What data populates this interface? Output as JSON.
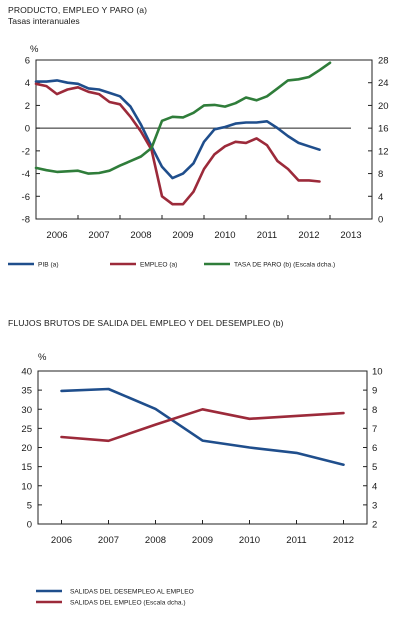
{
  "chart_data": [
    {
      "type": "line",
      "title": "PRODUCTO, EMPLEO Y PARO (a)",
      "subtitle": "Tasas interanuales",
      "y_unit": "%",
      "ylim_left": [
        -8,
        6
      ],
      "yticks_left": [
        "6",
        "4",
        "2",
        "0",
        "-2",
        "-4",
        "-6",
        "-8"
      ],
      "ylim_right": [
        0,
        28
      ],
      "yticks_right": [
        "28",
        "24",
        "20",
        "16",
        "12",
        "8",
        "4",
        "0"
      ],
      "x_range": [
        2005.5,
        2013.5
      ],
      "xticks": [
        "2006",
        "2007",
        "2008",
        "2009",
        "2010",
        "2011",
        "2012",
        "2013"
      ],
      "grid": false,
      "legend_position": "bottom",
      "series": [
        {
          "name": "PIB (a)",
          "axis": "left",
          "color": "#1f4e8c",
          "x": [
            2005.5,
            2005.75,
            2006.0,
            2006.25,
            2006.5,
            2006.75,
            2007.0,
            2007.25,
            2007.5,
            2007.75,
            2008.0,
            2008.25,
            2008.5,
            2008.75,
            2009.0,
            2009.25,
            2009.5,
            2009.75,
            2010.0,
            2010.25,
            2010.5,
            2010.75,
            2011.0,
            2011.25,
            2011.5,
            2011.75,
            2012.0,
            2012.25
          ],
          "values": [
            4.1,
            4.1,
            4.2,
            4.0,
            3.9,
            3.5,
            3.4,
            3.1,
            2.8,
            1.9,
            0.3,
            -1.6,
            -3.4,
            -4.4,
            -4.0,
            -3.1,
            -1.2,
            -0.1,
            0.1,
            0.4,
            0.5,
            0.5,
            0.6,
            0.0,
            -0.7,
            -1.3,
            -1.6,
            -1.9
          ]
        },
        {
          "name": "EMPLEO (a)",
          "axis": "left",
          "color": "#9c2a3a",
          "x": [
            2005.5,
            2005.75,
            2006.0,
            2006.25,
            2006.5,
            2006.75,
            2007.0,
            2007.25,
            2007.5,
            2007.75,
            2008.0,
            2008.25,
            2008.5,
            2008.75,
            2009.0,
            2009.25,
            2009.5,
            2009.75,
            2010.0,
            2010.25,
            2010.5,
            2010.75,
            2011.0,
            2011.25,
            2011.5,
            2011.75,
            2012.0,
            2012.25
          ],
          "values": [
            3.9,
            3.7,
            3.0,
            3.4,
            3.6,
            3.2,
            3.0,
            2.3,
            2.1,
            1.0,
            -0.3,
            -1.9,
            -6.0,
            -6.7,
            -6.7,
            -5.6,
            -3.6,
            -2.3,
            -1.6,
            -1.2,
            -1.3,
            -0.9,
            -1.5,
            -2.9,
            -3.6,
            -4.6,
            -4.6,
            -4.7
          ]
        },
        {
          "name": "TASA DE PARO (b) (Escala dcha.)",
          "axis": "right",
          "color": "#2f7d3a",
          "x": [
            2005.5,
            2005.75,
            2006.0,
            2006.25,
            2006.5,
            2006.75,
            2007.0,
            2007.25,
            2007.5,
            2007.75,
            2008.0,
            2008.25,
            2008.5,
            2008.75,
            2009.0,
            2009.25,
            2009.5,
            2009.75,
            2010.0,
            2010.25,
            2010.5,
            2010.75,
            2011.0,
            2011.25,
            2011.5,
            2011.75,
            2012.0,
            2012.25,
            2012.5
          ],
          "values": [
            9.0,
            8.6,
            8.3,
            8.4,
            8.5,
            8.0,
            8.1,
            8.5,
            9.4,
            10.2,
            11.0,
            12.5,
            17.3,
            18.0,
            17.9,
            18.7,
            20.0,
            20.1,
            19.8,
            20.4,
            21.4,
            20.9,
            21.6,
            23.0,
            24.4,
            24.6,
            25.0,
            26.2,
            27.5
          ]
        }
      ]
    },
    {
      "type": "line",
      "title": "FLUJOS BRUTOS DE SALIDA DEL EMPLEO Y DEL DESEMPLEO (b)",
      "y_unit": "%",
      "ylim_left": [
        0,
        40
      ],
      "yticks_left": [
        "40",
        "35",
        "30",
        "25",
        "20",
        "15",
        "10",
        "5",
        "0"
      ],
      "ylim_right": [
        2,
        10
      ],
      "yticks_right": [
        "10",
        "9",
        "8",
        "7",
        "6",
        "5",
        "4",
        "3",
        "2"
      ],
      "x_range": [
        2005.5,
        2012.5
      ],
      "xticks": [
        "2006",
        "2007",
        "2008",
        "2009",
        "2010",
        "2011",
        "2012"
      ],
      "grid": false,
      "legend_position": "bottom",
      "series": [
        {
          "name": "SALIDAS DEL DESEMPLEO AL EMPLEO",
          "axis": "left",
          "color": "#1f4e8c",
          "x": [
            2006,
            2007,
            2008,
            2009,
            2010,
            2011,
            2012
          ],
          "values": [
            34.8,
            35.3,
            30.1,
            21.8,
            20.0,
            18.6,
            15.5
          ]
        },
        {
          "name": "SALIDAS DEL EMPLEO (Escala dcha.)",
          "axis": "right",
          "color": "#9c2a3a",
          "x": [
            2006,
            2007,
            2008,
            2009,
            2010,
            2011,
            2012
          ],
          "values": [
            6.55,
            6.35,
            7.2,
            8.0,
            7.5,
            7.65,
            7.8
          ]
        }
      ]
    }
  ]
}
